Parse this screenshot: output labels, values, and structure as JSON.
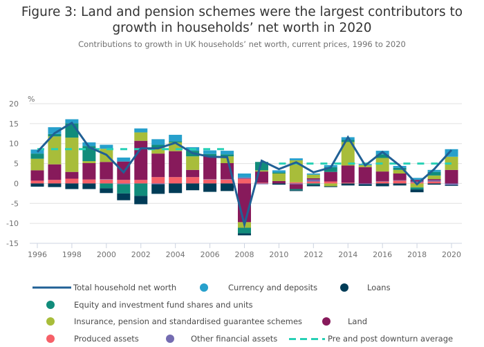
{
  "header": {
    "title": "Figure 3: Land and pension schemes were the largest contributors to growth in households’ net worth in 2020",
    "title_line1": "Figure 3: Land and pension schemes were the largest contributors to",
    "title_line2": "growth in households’ net worth in 2020",
    "subtitle": "Contributions to growth in UK households’ net worth, current prices, 1996 to 2020"
  },
  "chart_data": {
    "type": "bar",
    "stacked": true,
    "title": "Figure 3: Land and pension schemes were the largest contributors to growth in households’ net worth in 2020",
    "subtitle": "Contributions to growth in UK households’ net worth, current prices, 1996 to 2020",
    "xlabel": "",
    "ylabel": "%",
    "ylim": [
      -15,
      20
    ],
    "yticks": [
      20,
      15,
      10,
      5,
      0,
      -5,
      -10,
      -15
    ],
    "grid": true,
    "legend_position": "bottom",
    "categories": [
      "1996",
      "1997",
      "1998",
      "1999",
      "2000",
      "2001",
      "2002",
      "2003",
      "2004",
      "2005",
      "2006",
      "2007",
      "2008",
      "2009",
      "2010",
      "2011",
      "2012",
      "2013",
      "2014",
      "2015",
      "2016",
      "2017",
      "2018",
      "2019",
      "2020"
    ],
    "xtick_labels": [
      "1996",
      "1998",
      "2000",
      "2002",
      "2004",
      "2006",
      "2008",
      "2010",
      "2012",
      "2014",
      "2016",
      "2018",
      "2020"
    ],
    "series": [
      {
        "name": "Produced assets",
        "color": "#f66068",
        "values": [
          0.7,
          0.9,
          1.2,
          1.0,
          1.0,
          0.9,
          0.9,
          1.6,
          1.6,
          1.6,
          1.0,
          1.0,
          1.2,
          0.2,
          0.0,
          0.3,
          0.5,
          0.5,
          0.2,
          0.0,
          0.5,
          0.7,
          0.3,
          0.5,
          0.0
        ]
      },
      {
        "name": "Other financial assets",
        "color": "#746cb1",
        "values": [
          0.0,
          0.0,
          0.0,
          0.0,
          0.1,
          -0.2,
          0.0,
          -0.2,
          0.0,
          0.0,
          0.1,
          0.1,
          0.3,
          -0.2,
          0.0,
          -0.2,
          0.5,
          0.0,
          0.0,
          -0.2,
          0.1,
          0.1,
          0.2,
          0.3,
          -0.4
        ]
      },
      {
        "name": "Land",
        "color": "#871a5b",
        "values": [
          2.6,
          3.9,
          1.7,
          4.1,
          4.3,
          4.6,
          9.8,
          5.9,
          6.5,
          1.8,
          5.8,
          4.0,
          -9.7,
          2.8,
          0.6,
          -1.2,
          0.3,
          2.4,
          4.3,
          4.1,
          2.4,
          1.7,
          0.4,
          0.3,
          3.4
        ]
      },
      {
        "name": "Insurance, pension and standardised guarantee schemes",
        "color": "#a8bd3a",
        "values": [
          2.9,
          7.0,
          8.6,
          0.5,
          3.3,
          0.0,
          2.1,
          1.5,
          2.2,
          3.4,
          0.0,
          1.7,
          -1.4,
          0.3,
          1.9,
          5.5,
          0.9,
          -0.7,
          5.9,
          0.5,
          3.4,
          0.9,
          -1.0,
          0.9,
          3.3
        ]
      },
      {
        "name": "Equity and investment fund shares and units",
        "color": "#118c7b",
        "values": [
          1.3,
          0.6,
          3.6,
          3.8,
          -1.2,
          -2.3,
          -3.1,
          0.7,
          0.3,
          1.4,
          0.5,
          0.5,
          -1.4,
          2.1,
          0.3,
          -0.3,
          -0.3,
          1.2,
          0.5,
          0.0,
          0.9,
          0.5,
          -0.5,
          0.9,
          0.0
        ]
      },
      {
        "name": "Currency and deposits",
        "color": "#27a0cc",
        "values": [
          1.0,
          1.7,
          1.0,
          0.9,
          1.0,
          1.0,
          1.0,
          1.4,
          1.6,
          0.9,
          0.9,
          0.9,
          1.0,
          0.0,
          0.5,
          0.5,
          0.3,
          0.5,
          0.7,
          0.3,
          0.9,
          0.5,
          0.5,
          0.5,
          1.9
        ]
      },
      {
        "name": "Loans",
        "color": "#003c57",
        "values": [
          -0.8,
          -0.9,
          -1.4,
          -1.4,
          -1.2,
          -1.7,
          -2.1,
          -2.4,
          -2.4,
          -1.7,
          -2.1,
          -1.9,
          -0.5,
          0.0,
          -0.3,
          -0.2,
          -0.4,
          -0.2,
          -0.5,
          -0.4,
          -0.7,
          -0.5,
          -0.7,
          -0.3,
          -0.2
        ]
      }
    ],
    "line": {
      "name": "Total household net worth",
      "color": "#206095",
      "values": [
        7.9,
        12.6,
        15.2,
        9.1,
        7.2,
        2.8,
        8.8,
        8.8,
        10.2,
        7.6,
        6.7,
        6.6,
        -10.3,
        5.7,
        3.6,
        5.3,
        2.8,
        4.0,
        11.6,
        4.5,
        7.9,
        4.5,
        -0.2,
        3.6,
        8.4
      ]
    },
    "averages": {
      "name": "Pre and post downturn average",
      "color": "#27d0b5",
      "segments": [
        {
          "from": "1996",
          "to": "2007",
          "value": 8.6
        },
        {
          "from": "2010",
          "to": "2020",
          "value": 5.0
        }
      ]
    }
  },
  "legend": {
    "items": [
      {
        "label": "Total household net worth",
        "kind": "line",
        "color": "#206095"
      },
      {
        "label": "Currency and deposits",
        "kind": "dot",
        "color": "#27a0cc"
      },
      {
        "label": "Loans",
        "kind": "dot",
        "color": "#003c57"
      },
      {
        "label": "Equity and investment fund shares and units",
        "kind": "dot",
        "color": "#118c7b"
      },
      {
        "label": "Insurance, pension and standardised guarantee schemes",
        "kind": "dot",
        "color": "#a8bd3a"
      },
      {
        "label": "Land",
        "kind": "dot",
        "color": "#871a5b"
      },
      {
        "label": "Produced assets",
        "kind": "dot",
        "color": "#f66068"
      },
      {
        "label": "Other financial assets",
        "kind": "dot",
        "color": "#746cb1"
      },
      {
        "label": "Pre and post downturn average",
        "kind": "dash",
        "color": "#27d0b5"
      }
    ]
  }
}
